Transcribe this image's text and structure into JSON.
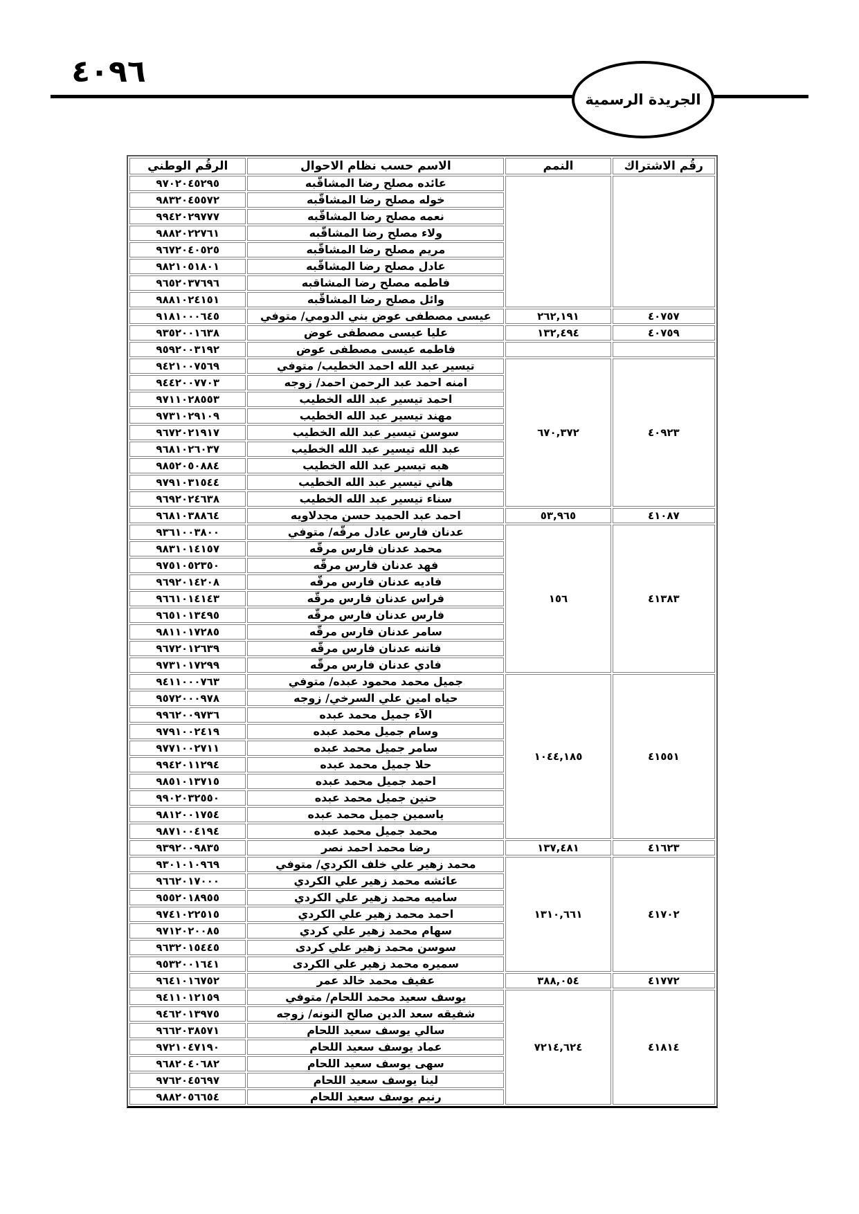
{
  "page": {
    "number": "٤٠٩٦",
    "gazette_title": "الجريدة الرسمية"
  },
  "table": {
    "headers": {
      "subscription_no": "رقُم الاشتراك",
      "plots": "النمم",
      "name": "الاسم حسب نظام الاحوال",
      "national_no": "الرقُم الوطني"
    },
    "groups": [
      {
        "subscription_no": "",
        "plots": "",
        "rows": [
          {
            "name": "عائده مصلح رضا المشاقّبه",
            "national_no": "٩٧٠٢٠٤٥٢٩٥"
          },
          {
            "name": "خوله مصلح رضا المشاقّبه",
            "national_no": "٩٨٣٢٠٤٥٥٧٢"
          },
          {
            "name": "نعمه مصلح رضا المشاقّبه",
            "national_no": "٩٩٤٢٠٢٩٧٧٧"
          },
          {
            "name": "ولاء مصلح رضا المشاقّبه",
            "national_no": "٩٨٨٢٠٢٢٧٦١"
          },
          {
            "name": "مريم مصلح رضا المشاقّبه",
            "national_no": "٩٦٧٢٠٤٠٥٢٥"
          },
          {
            "name": "عادل مصلح رضا المشاقّبه",
            "national_no": "٩٨٢١٠٥١٨٠١"
          },
          {
            "name": "فاطمه مصلح رضا المشاقبه",
            "national_no": "٩٦٥٢٠٣٧٦٩٦"
          },
          {
            "name": "وائل مصلح رضا المشاقّبه",
            "national_no": "٩٨٨١٠٢٤١٥١"
          }
        ]
      },
      {
        "subscription_no": "٤٠٧٥٧",
        "plots": "٢٦٢,١٩١",
        "rows": [
          {
            "name": "عيسى مصطفى عوض بني الدومي/ متوفي",
            "national_no": "٩١٨١٠٠٠٦٤٥"
          }
        ]
      },
      {
        "subscription_no": "٤٠٧٥٩",
        "plots": "١٣٢,٤٩٤",
        "rows": [
          {
            "name": "عليا عيسى مصطفى عوض",
            "national_no": "٩٣٥٢٠٠١٦٣٨"
          }
        ]
      },
      {
        "subscription_no": "",
        "plots": "",
        "rows": [
          {
            "name": "فاطمه عيسى مصطفى عوض",
            "national_no": "٩٥٩٢٠٠٣١٩٢"
          }
        ]
      },
      {
        "subscription_no": "٤٠٩٢٣",
        "plots": "٦٧٠,٣٧٢",
        "rows": [
          {
            "name": "تيسير عبد الله احمد الخطيب/ متوفي",
            "national_no": "٩٤٢١٠٠٧٥٦٩"
          },
          {
            "name": "امنه احمد عبد الرحمن احمد/ زوجه",
            "national_no": "٩٤٤٢٠٠٧٧٠٣"
          },
          {
            "name": "احمد تيسير عبد الله الخطيب",
            "national_no": "٩٧١١٠٢٨٥٥٣"
          },
          {
            "name": "مهند تيسير عبد الله الخطيب",
            "national_no": "٩٧٣١٠٢٩١٠٩"
          },
          {
            "name": "سوسن تيسير عبد الله الخطيب",
            "national_no": "٩٦٧٢٠٢١٩١٧"
          },
          {
            "name": "عبد الله تيسير عبد الله الخطيب",
            "national_no": "٩٦٨١٠٢٦٠٣٧"
          },
          {
            "name": "هبه تيسير عبد الله الخطيب",
            "national_no": "٩٨٥٢٠٥٠٨٨٤"
          },
          {
            "name": "هاني تيسير عبد الله الخطيب",
            "national_no": "٩٧٩١٠٣١٥٤٤"
          },
          {
            "name": "سناء تيسير عبد الله الخطيب",
            "national_no": "٩٦٩٢٠٢٤٦٣٨"
          }
        ]
      },
      {
        "subscription_no": "٤١٠٨٧",
        "plots": "٥٣,٩٦٥",
        "rows": [
          {
            "name": "احمد عبد الحميد حسن مجدلاويه",
            "national_no": "٩٦٨١٠٣٨٨٦٤"
          }
        ]
      },
      {
        "subscription_no": "٤١٣٨٣",
        "plots": "١٥٦",
        "rows": [
          {
            "name": "عدنان فارس عادل مرقّه/ متوفي",
            "national_no": "٩٣٦١٠٠٣٨٠٠"
          },
          {
            "name": "محمد عدنان فارس مرقّه",
            "national_no": "٩٨٣١٠١٤١٥٧"
          },
          {
            "name": "فهد عدنان فارس مرقّه",
            "national_no": "٩٧٥١٠٥٢٣٥٠"
          },
          {
            "name": "فاديه عدنان فارس مرقّه",
            "national_no": "٩٦٩٢٠١٤٢٠٨"
          },
          {
            "name": "فراس عدنان فارس مرقّه",
            "national_no": "٩٦٦١٠١٤١٤٣"
          },
          {
            "name": "فارس عدنان فارس مرقّه",
            "national_no": "٩٦٥١٠١٣٤٩٥"
          },
          {
            "name": "سامر عدنان فارس مرقّه",
            "national_no": "٩٨١١٠١٧٢٨٥"
          },
          {
            "name": "فاتنه عدنان فارس مرقّه",
            "national_no": "٩٦٧٢٠١٢٦٣٩"
          },
          {
            "name": "فادي عدنان فارس مرقّه",
            "national_no": "٩٧٣١٠١٧٢٩٩"
          }
        ]
      },
      {
        "subscription_no": "٤١٥٥١",
        "plots": "١٠٤٤,١٨٥",
        "rows": [
          {
            "name": "جميل محمد محمود عبده/ متوفي",
            "national_no": "٩٤١١٠٠٠٧٦٣"
          },
          {
            "name": "حياه امين علي السرخي/ زوجه",
            "national_no": "٩٥٧٢٠٠٠٩٧٨"
          },
          {
            "name": "الآء جميل محمد عبده",
            "national_no": "٩٩٦٢٠٠٩٧٣٦"
          },
          {
            "name": "وسام جميل محمد عبده",
            "national_no": "٩٧٩١٠٠٢٤١٩"
          },
          {
            "name": "سامر جميل محمد عبده",
            "national_no": "٩٧٧١٠٠٢٧١١"
          },
          {
            "name": "حلا جميل محمد عبده",
            "national_no": "٩٩٤٢٠١١٢٩٤"
          },
          {
            "name": "احمد جميل محمد عبده",
            "national_no": "٩٨٥١٠١٣٧١٥"
          },
          {
            "name": "حنين جميل محمد عبده",
            "national_no": "٩٩٠٢٠٣٢٥٥٠"
          },
          {
            "name": "ياسمين جميل محمد عبده",
            "national_no": "٩٨١٢٠٠١٧٥٤"
          },
          {
            "name": "محمد جميل محمد عبده",
            "national_no": "٩٨٧١٠٠٤١٩٤"
          }
        ]
      },
      {
        "subscription_no": "٤١٦٢٣",
        "plots": "١٣٧,٤٨١",
        "rows": [
          {
            "name": "رضا محمد احمد نصر",
            "national_no": "٩٣٩٢٠٠٩٨٣٥"
          }
        ]
      },
      {
        "subscription_no": "٤١٧٠٢",
        "plots": "١٣١٠,٦٦١",
        "rows": [
          {
            "name": "محمد زهير علي خلف الكردي/ متوفي",
            "national_no": "٩٣٠١٠١٠٩٦٩"
          },
          {
            "name": "عائشه محمد زهير علي الكردي",
            "national_no": "٩٦٦٢٠١٧٠٠٠"
          },
          {
            "name": "ساميه محمد زهير علي الكردي",
            "national_no": "٩٥٥٢٠١٨٩٥٥"
          },
          {
            "name": "احمد محمد زهير علي الكردي",
            "national_no": "٩٧٤١٠٢٢٥١٥"
          },
          {
            "name": "سهام محمد زهير علي كردي",
            "national_no": "٩٧١٢٠٢٠٠٨٥"
          },
          {
            "name": "سوسن محمد زهير علي كردى",
            "national_no": "٩٦٣٢٠١٥٤٤٥"
          },
          {
            "name": "سميره محمد زهير علي الكردى",
            "national_no": "٩٥٣٢٠٠١٦٤١"
          }
        ]
      },
      {
        "subscription_no": "٤١٧٧٢",
        "plots": "٣٨٨,٠٥٤",
        "rows": [
          {
            "name": "عفيف محمد خالد عمر",
            "national_no": "٩٦٤١٠١٦٧٥٢"
          }
        ]
      },
      {
        "subscription_no": "٤١٨١٤",
        "plots": "٧٢١٤,٦٢٤",
        "rows": [
          {
            "name": "يوسف سعيد محمد اللحام/ متوفي",
            "national_no": "٩٤١١٠١٢١٥٩"
          },
          {
            "name": "شفيقه سعد الدين صالح النونه/ زوجه",
            "national_no": "٩٤٦٢٠١٣٩٧٥"
          },
          {
            "name": "سالي يوسف سعيد اللحام",
            "national_no": "٩٦٦٢٠٣٨٥٧١"
          },
          {
            "name": "عماد يوسف سعيد اللحام",
            "national_no": "٩٧٢١٠٤٧١٩٠"
          },
          {
            "name": "سهى يوسف سعيد اللحام",
            "national_no": "٩٦٨٢٠٤٠٦٨٢"
          },
          {
            "name": "لينا يوسف سعيد اللحام",
            "national_no": "٩٧٦٢٠٤٥٦٩٧"
          },
          {
            "name": "رنيم يوسف سعيد اللحام",
            "national_no": "٩٨٨٢٠٥٦٦٥٤"
          }
        ]
      }
    ]
  }
}
